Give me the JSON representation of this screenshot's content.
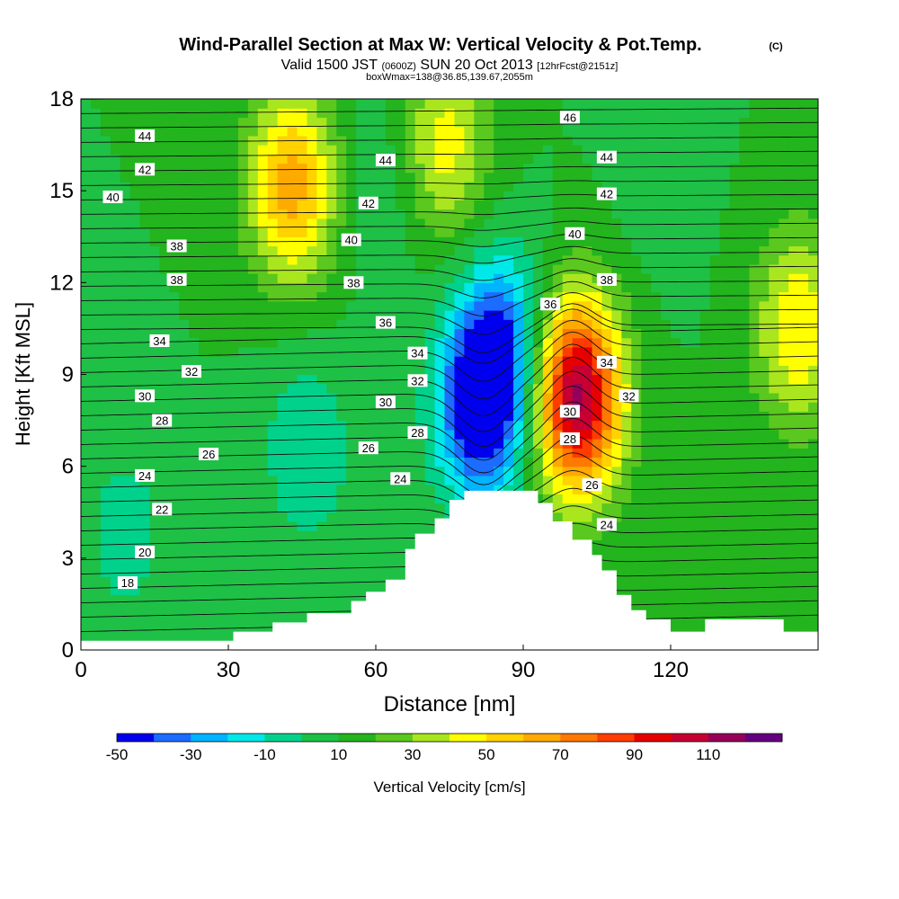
{
  "chart_data": {
    "type": "heatmap",
    "title": "Wind-Parallel Section at Max W: Vertical Velocity & Pot.Temp.",
    "title_mark": "(C)",
    "subtitle": {
      "prefix": "Valid 1500 JST",
      "utc": "(0600Z)",
      "date": "SUN 20 Oct 2013",
      "forecast": "[12hrFcst@2151z]"
    },
    "subtitle2": "boxWmax=138@36.85,139.67,2055m",
    "xlabel": "Distance [nm]",
    "ylabel": "Height [Kft MSL]",
    "xlim": [
      0,
      150
    ],
    "ylim": [
      0,
      18
    ],
    "xticks": [
      "0",
      "30",
      "60",
      "90",
      "120"
    ],
    "yticks": [
      "0",
      "3",
      "6",
      "9",
      "12",
      "15",
      "18"
    ],
    "colorbar": {
      "label": "Vertical Velocity [cm/s]",
      "tick_labels": [
        "-50",
        "-30",
        "-10",
        "10",
        "30",
        "50",
        "70",
        "90",
        "110"
      ],
      "levels": [
        -50,
        -40,
        -30,
        -20,
        -10,
        0,
        10,
        20,
        30,
        40,
        50,
        60,
        70,
        80,
        90,
        100,
        110,
        120
      ],
      "colors": [
        "#0000ee",
        "#1c6cff",
        "#00b4ff",
        "#00e8e8",
        "#00d28c",
        "#1ec046",
        "#23b41e",
        "#5ac81e",
        "#aae61e",
        "#ffff00",
        "#ffd200",
        "#ffaa00",
        "#ff7800",
        "#ff3c00",
        "#e60000",
        "#c80032",
        "#96005a",
        "#640082"
      ]
    },
    "vertical_velocity_features": [
      {
        "x": 43,
        "y": 15.2,
        "value": 65
      },
      {
        "x": 81,
        "y": 7.9,
        "value": -48
      },
      {
        "x": 86,
        "y": 10.0,
        "value": -30
      },
      {
        "x": 101,
        "y": 8.3,
        "value": 115
      },
      {
        "x": 74,
        "y": 16.5,
        "value": 45
      },
      {
        "x": 146,
        "y": 10.5,
        "value": 50
      },
      {
        "x": 9,
        "y": 3.8,
        "value": -5
      },
      {
        "x": 46,
        "y": 6.5,
        "value": -10
      },
      {
        "x": 62,
        "y": 15.0,
        "value": 0
      },
      {
        "x": 118,
        "y": 15.0,
        "value": 5
      }
    ],
    "terrain_profile": [
      [
        0,
        0.3
      ],
      [
        31,
        0.3
      ],
      [
        31,
        0.6
      ],
      [
        39,
        0.6
      ],
      [
        39,
        0.9
      ],
      [
        46,
        0.9
      ],
      [
        46,
        1.2
      ],
      [
        55,
        1.2
      ],
      [
        55,
        1.6
      ],
      [
        58,
        1.6
      ],
      [
        58,
        1.9
      ],
      [
        62,
        1.9
      ],
      [
        62,
        2.3
      ],
      [
        66,
        2.3
      ],
      [
        66,
        3.3
      ],
      [
        68,
        3.3
      ],
      [
        68,
        3.8
      ],
      [
        72,
        3.8
      ],
      [
        72,
        4.3
      ],
      [
        75,
        4.3
      ],
      [
        75,
        4.9
      ],
      [
        78,
        4.9
      ],
      [
        78,
        5.2
      ],
      [
        93,
        5.2
      ],
      [
        93,
        4.8
      ],
      [
        96,
        4.8
      ],
      [
        96,
        4.2
      ],
      [
        100,
        4.2
      ],
      [
        100,
        3.6
      ],
      [
        104,
        3.6
      ],
      [
        104,
        3.1
      ],
      [
        106,
        3.1
      ],
      [
        106,
        2.6
      ],
      [
        109,
        2.6
      ],
      [
        109,
        1.8
      ],
      [
        112,
        1.8
      ],
      [
        112,
        1.3
      ],
      [
        115,
        1.3
      ],
      [
        115,
        1.0
      ],
      [
        120,
        1.0
      ],
      [
        120,
        0.6
      ],
      [
        127,
        0.6
      ],
      [
        127,
        1.0
      ],
      [
        143,
        1.0
      ],
      [
        143,
        0.6
      ],
      [
        150,
        0.6
      ]
    ],
    "potential_temperature_labels": [
      {
        "text": "44",
        "x": 13,
        "y": 16.8
      },
      {
        "text": "42",
        "x": 13,
        "y": 15.7
      },
      {
        "text": "40",
        "x": 6.5,
        "y": 14.8
      },
      {
        "text": "38",
        "x": 19.5,
        "y": 13.2
      },
      {
        "text": "38",
        "x": 19.5,
        "y": 12.1
      },
      {
        "text": "34",
        "x": 16,
        "y": 10.1
      },
      {
        "text": "32",
        "x": 22.5,
        "y": 9.1
      },
      {
        "text": "30",
        "x": 13,
        "y": 8.3
      },
      {
        "text": "28",
        "x": 16.5,
        "y": 7.5
      },
      {
        "text": "26",
        "x": 26,
        "y": 6.4
      },
      {
        "text": "24",
        "x": 13,
        "y": 5.7
      },
      {
        "text": "22",
        "x": 16.5,
        "y": 4.6
      },
      {
        "text": "20",
        "x": 13,
        "y": 3.2
      },
      {
        "text": "18",
        "x": 9.5,
        "y": 2.2
      },
      {
        "text": "44",
        "x": 62,
        "y": 16.0
      },
      {
        "text": "42",
        "x": 58.5,
        "y": 14.6
      },
      {
        "text": "40",
        "x": 55,
        "y": 13.4
      },
      {
        "text": "38",
        "x": 55.5,
        "y": 12.0
      },
      {
        "text": "36",
        "x": 62,
        "y": 10.7
      },
      {
        "text": "34",
        "x": 68.5,
        "y": 9.7
      },
      {
        "text": "32",
        "x": 68.5,
        "y": 8.8
      },
      {
        "text": "30",
        "x": 62,
        "y": 8.1
      },
      {
        "text": "28",
        "x": 68.5,
        "y": 7.1
      },
      {
        "text": "26",
        "x": 58.5,
        "y": 6.6
      },
      {
        "text": "24",
        "x": 65,
        "y": 5.6
      },
      {
        "text": "46",
        "x": 99.5,
        "y": 17.4
      },
      {
        "text": "44",
        "x": 107,
        "y": 16.1
      },
      {
        "text": "42",
        "x": 107,
        "y": 14.9
      },
      {
        "text": "40",
        "x": 100.5,
        "y": 13.6
      },
      {
        "text": "38",
        "x": 107,
        "y": 12.1
      },
      {
        "text": "36",
        "x": 95.5,
        "y": 11.3
      },
      {
        "text": "34",
        "x": 107,
        "y": 9.4
      },
      {
        "text": "32",
        "x": 111.5,
        "y": 8.3
      },
      {
        "text": "30",
        "x": 99.5,
        "y": 7.8
      },
      {
        "text": "28",
        "x": 99.5,
        "y": 6.9
      },
      {
        "text": "26",
        "x": 104,
        "y": 5.4
      },
      {
        "text": "24",
        "x": 107,
        "y": 4.1
      }
    ],
    "grid": false
  }
}
